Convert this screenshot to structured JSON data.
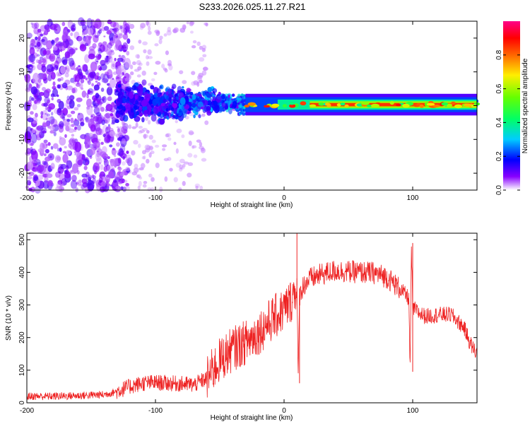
{
  "title": "S233.2026.025.11.27.R21",
  "chart_data": [
    {
      "type": "heatmap",
      "name": "spectrogram",
      "xlabel": "Height of straight line (km)",
      "ylabel": "Frequency (Hz)",
      "xlim": [
        -200,
        150
      ],
      "ylim": [
        -25,
        25
      ],
      "xticks": [
        -200,
        -100,
        0,
        100
      ],
      "yticks": [
        -20,
        -10,
        0,
        10,
        20
      ],
      "colorbar": {
        "label": "Normalized spectral amplitude",
        "range": [
          0,
          1
        ],
        "ticks": [
          0.0,
          0.2,
          0.4,
          0.6,
          0.8
        ],
        "tick_labels": [
          "0.0",
          "0.2",
          "0.4",
          "0.6",
          "0.8"
        ]
      },
      "features": [
        {
          "description": "diffuse scatter",
          "x_range": [
            -200,
            -130
          ],
          "freq_range": [
            -25,
            25
          ],
          "amplitude": 0.1
        },
        {
          "description": "broadening band",
          "x_range": [
            -130,
            -30
          ],
          "freq_range": [
            -8,
            8
          ],
          "amplitude": 0.15
        },
        {
          "description": "narrow carrier line",
          "x_range": [
            -20,
            150
          ],
          "freq_center": 0.3,
          "amplitude": 0.85
        }
      ]
    },
    {
      "type": "line",
      "name": "snr",
      "xlabel": "Height of straight line (km)",
      "ylabel": "SNR (10 * v/v)",
      "xlim": [
        -200,
        150
      ],
      "ylim": [
        0,
        520
      ],
      "xticks": [
        -200,
        -100,
        0,
        100
      ],
      "yticks": [
        0,
        100,
        200,
        300,
        400,
        500
      ],
      "color": "#ee2222",
      "series": [
        {
          "name": "SNR",
          "x": [
            -200,
            -180,
            -160,
            -140,
            -130,
            -120,
            -110,
            -100,
            -90,
            -80,
            -70,
            -60,
            -50,
            -40,
            -30,
            -20,
            -10,
            0,
            5,
            10,
            11,
            12,
            15,
            20,
            30,
            40,
            50,
            60,
            70,
            80,
            90,
            97,
            98,
            99,
            100,
            101,
            102,
            105,
            110,
            120,
            130,
            140,
            145,
            150
          ],
          "y": [
            20,
            20,
            22,
            25,
            35,
            50,
            60,
            62,
            60,
            58,
            55,
            75,
            130,
            165,
            185,
            215,
            255,
            285,
            310,
            360,
            60,
            330,
            360,
            380,
            395,
            405,
            402,
            400,
            398,
            385,
            350,
            320,
            100,
            480,
            280,
            290,
            285,
            275,
            265,
            270,
            270,
            230,
            180,
            150
          ]
        }
      ]
    }
  ]
}
